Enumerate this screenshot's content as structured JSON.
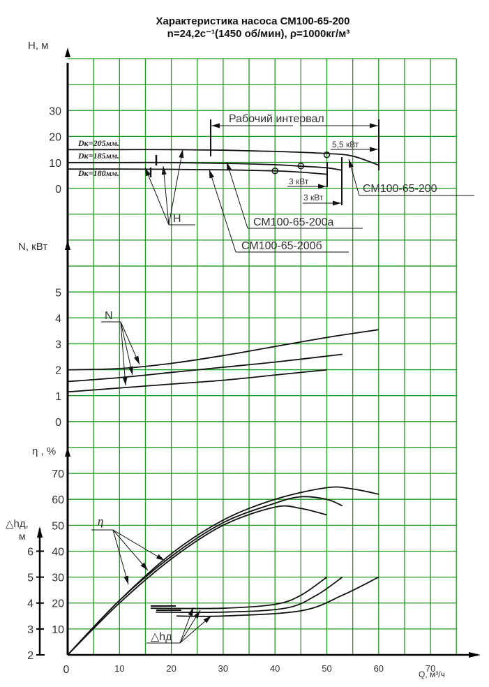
{
  "title": {
    "line1": "Характеристика насоса СМ100-65-200",
    "line2": "n=24,2c⁻¹(1450 об/мин), ρ=1000кг/м³"
  },
  "axes": {
    "x": {
      "label": "Q, м³/ч",
      "ticks": [
        "0",
        "10",
        "20",
        "30",
        "40",
        "50",
        "60",
        "70"
      ]
    },
    "H": {
      "label": "H, м",
      "ticks": [
        "0",
        "10",
        "20",
        "30"
      ]
    },
    "N": {
      "label": "N, кВт",
      "ticks": [
        "0",
        "1",
        "2",
        "3",
        "4",
        "5"
      ]
    },
    "eta": {
      "label": "η , %",
      "ticks": [
        "10",
        "20",
        "30",
        "40",
        "50",
        "60",
        "70"
      ]
    },
    "dh": {
      "label_top": "△hд,",
      "label_unit": "м",
      "ticks": [
        "2",
        "3",
        "4",
        "5",
        "6"
      ]
    }
  },
  "annotations": {
    "working_interval": "Рабочий интервал",
    "power_55": "5,5 кВт",
    "power_3a": "3 кВт",
    "power_3b": "3 кВт",
    "pump_200": "СМ100-65-200",
    "pump_200a": "СМ100-65-200а",
    "pump_200b": "СМ100-65-200б",
    "d205": "Dк=205мм.",
    "d185": "Dк=185мм.",
    "d180": "Dк=180мм.",
    "H_label": "H",
    "N_label": "N",
    "eta_label": "η",
    "dh_label": "△hд"
  },
  "colors": {
    "grid": "#1e9a1e",
    "curve": "#111111",
    "axis": "#000000"
  },
  "chart_data": [
    {
      "type": "line",
      "title": "H-Q",
      "xlabel": "Q, м³/ч",
      "ylabel": "H, м",
      "xlim": [
        0,
        75
      ],
      "ylim": [
        0,
        30
      ],
      "grid": true,
      "series": [
        {
          "name": "СМ100-65-200 (Dк=205мм)",
          "x": [
            0,
            10,
            20,
            30,
            40,
            50,
            55,
            60
          ],
          "y": [
            15,
            15,
            15,
            14.8,
            14.3,
            13.5,
            12.5,
            9
          ]
        },
        {
          "name": "СМ100-65-200а (Dк=185мм)",
          "x": [
            0,
            10,
            20,
            30,
            40,
            45,
            50,
            53
          ],
          "y": [
            10,
            10,
            10,
            9.7,
            9.2,
            8.6,
            8,
            7
          ]
        },
        {
          "name": "СМ100-65-200б (Dк=180мм)",
          "x": [
            0,
            10,
            20,
            30,
            40,
            45,
            50
          ],
          "y": [
            7.5,
            7.5,
            7.4,
            7.2,
            6.8,
            6.3,
            5.5
          ]
        }
      ],
      "operating_points": [
        {
          "Q": 50,
          "H": 13
        },
        {
          "Q": 45,
          "H": 8.7
        },
        {
          "Q": 40,
          "H": 6.8
        }
      ],
      "working_interval_Q": [
        27,
        60
      ]
    },
    {
      "type": "line",
      "title": "N-Q",
      "xlabel": "Q, м³/ч",
      "ylabel": "N, кВт",
      "xlim": [
        0,
        75
      ],
      "ylim": [
        0,
        6
      ],
      "grid": true,
      "series": [
        {
          "name": "СМ100-65-200",
          "x": [
            0,
            10,
            20,
            30,
            40,
            50,
            60
          ],
          "y": [
            2.0,
            2.05,
            2.25,
            2.55,
            2.9,
            3.25,
            3.55
          ]
        },
        {
          "name": "СМ100-65-200а",
          "x": [
            0,
            10,
            20,
            30,
            40,
            53
          ],
          "y": [
            1.55,
            1.7,
            1.9,
            2.1,
            2.3,
            2.6
          ]
        },
        {
          "name": "СМ100-65-200б",
          "x": [
            0,
            10,
            20,
            30,
            40,
            50
          ],
          "y": [
            1.15,
            1.3,
            1.45,
            1.6,
            1.8,
            2.0
          ]
        }
      ]
    },
    {
      "type": "line",
      "title": "η-Q",
      "xlabel": "Q, м³/ч",
      "ylabel": "η, %",
      "xlim": [
        0,
        75
      ],
      "ylim": [
        0,
        75
      ],
      "grid": true,
      "series": [
        {
          "name": "СМ100-65-200",
          "x": [
            0,
            10,
            20,
            30,
            40,
            50,
            55,
            60
          ],
          "y": [
            0,
            21,
            39,
            52,
            60,
            64.5,
            64,
            62
          ]
        },
        {
          "name": "СМ100-65-200а",
          "x": [
            0,
            10,
            20,
            30,
            40,
            45,
            50,
            53
          ],
          "y": [
            0,
            21,
            38,
            51,
            58.5,
            61,
            60,
            57.5
          ]
        },
        {
          "name": "СМ100-65-200б",
          "x": [
            0,
            10,
            20,
            30,
            40,
            45,
            50
          ],
          "y": [
            0,
            20,
            37,
            50,
            57,
            56.5,
            54
          ]
        }
      ]
    },
    {
      "type": "line",
      "title": "Δhд-Q",
      "xlabel": "Q, м³/ч",
      "ylabel": "Δhд, м",
      "xlim": [
        0,
        75
      ],
      "ylim": [
        2,
        7
      ],
      "grid": true,
      "series": [
        {
          "name": "СМ100-65-200б",
          "x": [
            16,
            30,
            40,
            45,
            50
          ],
          "y": [
            3.8,
            3.8,
            3.95,
            4.3,
            5.0
          ]
        },
        {
          "name": "СМ100-65-200а",
          "x": [
            17,
            30,
            42,
            48,
            53
          ],
          "y": [
            3.65,
            3.65,
            3.8,
            4.3,
            5.0
          ]
        },
        {
          "name": "СМ100-65-200",
          "x": [
            21,
            30,
            45,
            53,
            60
          ],
          "y": [
            3.5,
            3.5,
            3.7,
            4.3,
            5.0
          ]
        }
      ]
    }
  ]
}
